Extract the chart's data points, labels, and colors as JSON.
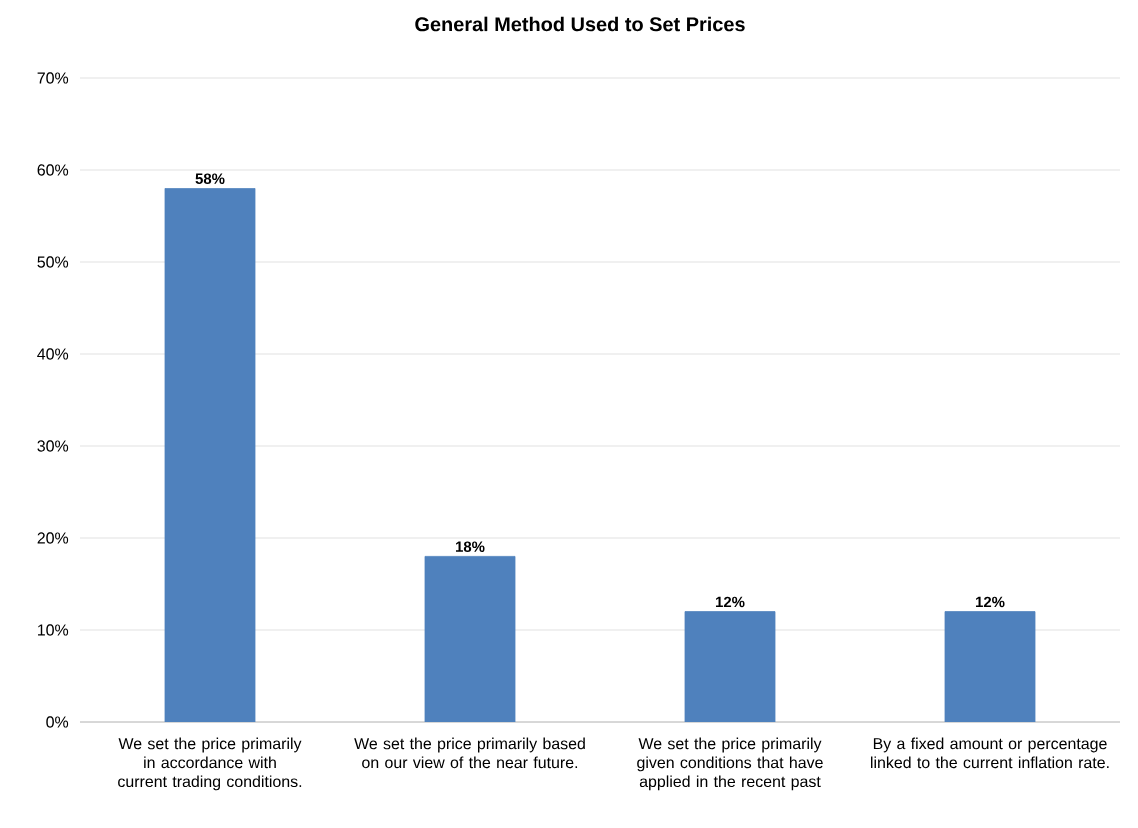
{
  "chart_data": {
    "type": "bar",
    "title": "General Method Used to Set Prices",
    "categories": [
      "We set the price primarily in accordance with current trading conditions.",
      "We set the price primarily based on our view of the near future.",
      "We set the price primarily given conditions that have applied in the recent past",
      "By a fixed amount or percentage linked to the current inflation rate."
    ],
    "values": [
      58,
      18,
      12,
      12
    ],
    "value_labels": [
      "58%",
      "18%",
      "12%",
      "12%"
    ],
    "color": "#4f81bd",
    "ylim": [
      0,
      70
    ],
    "yticks": [
      {
        "value": 0,
        "label": "0%"
      },
      {
        "value": 10,
        "label": "10%"
      },
      {
        "value": 20,
        "label": "20%"
      },
      {
        "value": 30,
        "label": "30%"
      },
      {
        "value": 40,
        "label": "40%"
      },
      {
        "value": 50,
        "label": "50%"
      },
      {
        "value": 60,
        "label": "60%"
      },
      {
        "value": 70,
        "label": "70%"
      }
    ],
    "grid": "y"
  }
}
